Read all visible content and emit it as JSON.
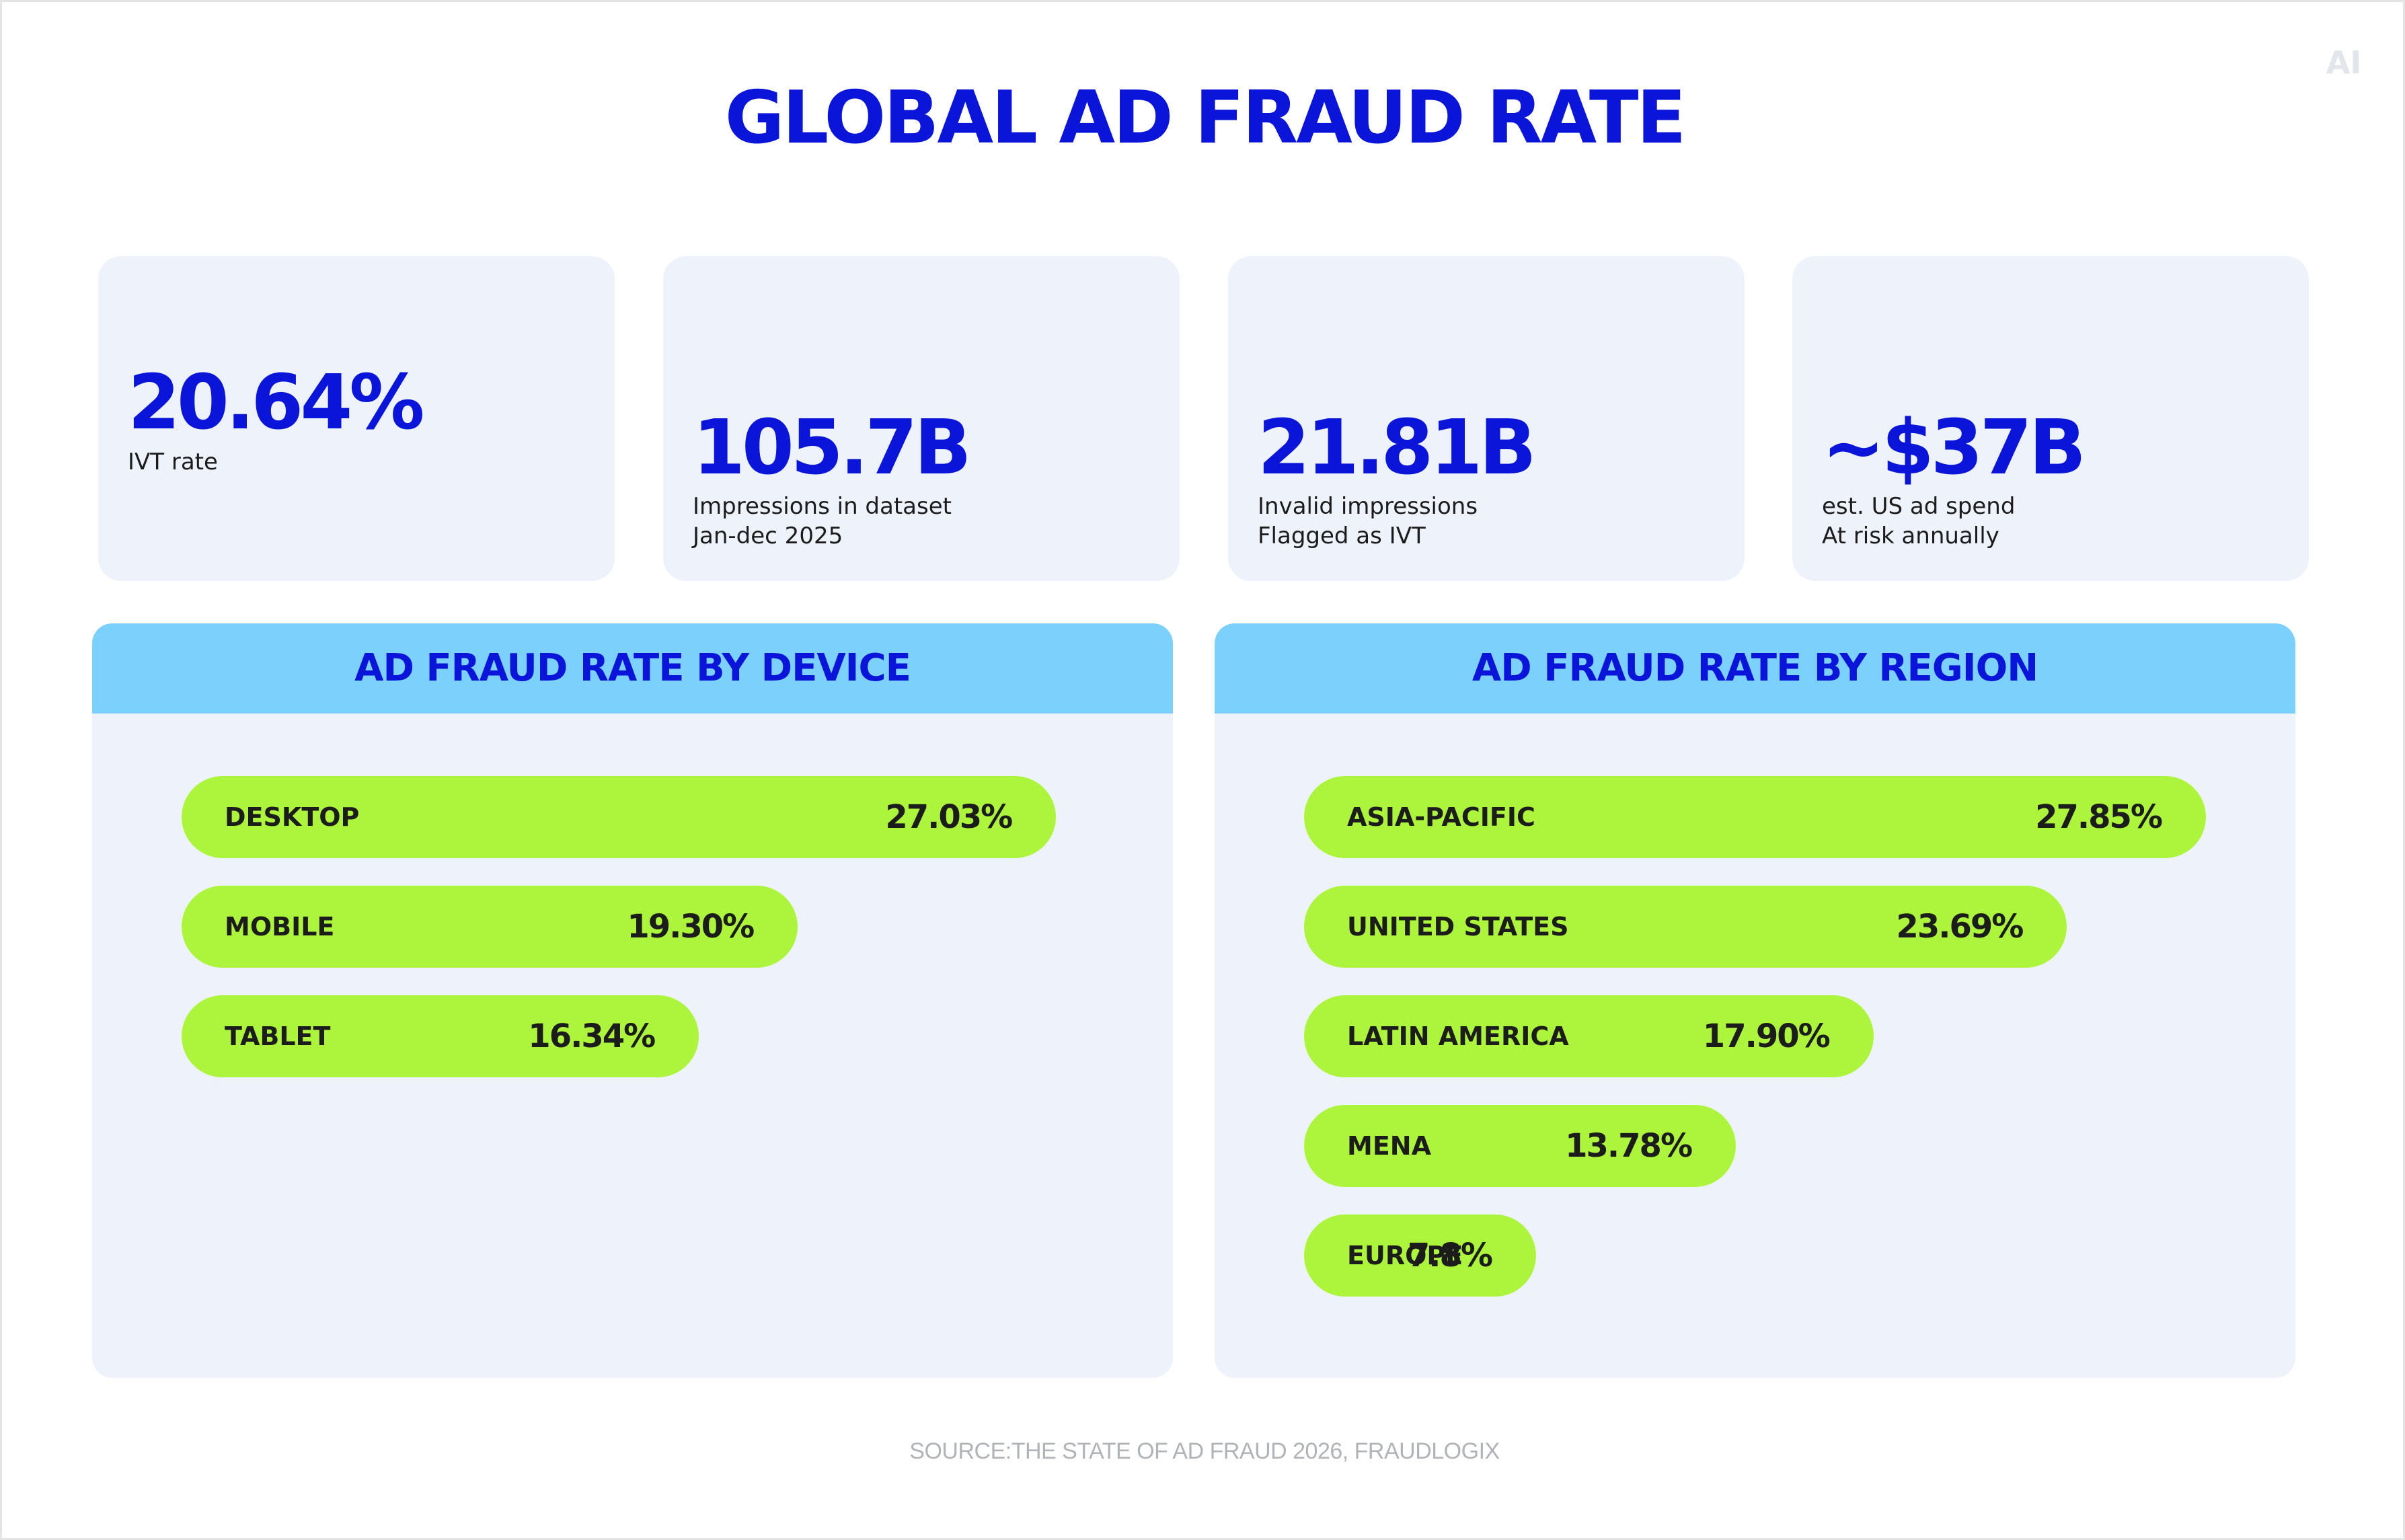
{
  "brand": {
    "mark": "AI"
  },
  "title": "GLOBAL AD FRAUD RATE",
  "kpis": [
    {
      "value": "20.64%",
      "label_lines": [
        "IVT rate"
      ]
    },
    {
      "value": "105.7B",
      "label_lines": [
        "Impressions in dataset",
        "Jan-dec 2025"
      ]
    },
    {
      "value": "21.81B",
      "label_lines": [
        "Invalid impressions",
        "Flagged as IVT"
      ]
    },
    {
      "value": "~$37B",
      "label_lines": [
        "est. US ad spend",
        "At risk annually"
      ]
    }
  ],
  "chart_data": [
    {
      "type": "bar",
      "orientation": "horizontal",
      "title": "AD FRAUD RATE BY DEVICE",
      "categories": [
        "DESKTOP",
        "MOBILE",
        "TABLET"
      ],
      "values": [
        27.03,
        19.3,
        16.34
      ],
      "value_labels": [
        "27.03%",
        "19.30%",
        "16.34%"
      ],
      "xlim": [
        0,
        27.85
      ],
      "grid": false,
      "colors": {
        "bar": "#adf43d",
        "header": "#7cd0fc",
        "title": "#0a15d9"
      }
    },
    {
      "type": "bar",
      "orientation": "horizontal",
      "title": "AD FRAUD RATE BY REGION",
      "categories": [
        "ASIA-PACIFIC",
        "UNITED STATES",
        "LATIN AMERICA",
        "MENA",
        "EUROPE"
      ],
      "values": [
        27.85,
        23.69,
        17.9,
        13.78,
        7.8
      ],
      "value_labels": [
        "27.85%",
        "23.69%",
        "17.90%",
        "13.78%",
        "7.8%"
      ],
      "xlim": [
        0,
        27.85
      ],
      "grid": false,
      "colors": {
        "bar": "#adf43d",
        "header": "#7cd0fc",
        "title": "#0a15d9"
      }
    }
  ],
  "source": "SOURCE:THE STATE OF AD FRAUD 2026, FRAUDLOGIX",
  "colors": {
    "accent": "#0a15d9",
    "card": "#eef3fb",
    "bar": "#adf43d",
    "header": "#7cd0fc"
  }
}
